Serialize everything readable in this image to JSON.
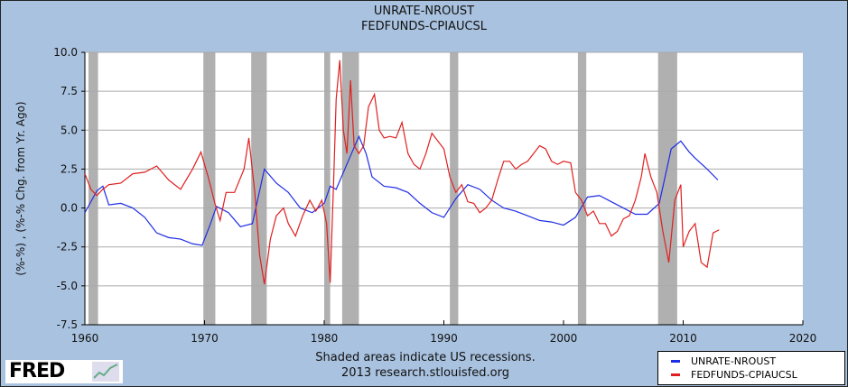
{
  "chart_data": {
    "type": "line",
    "title": [
      "UNRATE-NROUST",
      "FEDFUNDS-CPIAUCSL"
    ],
    "ylabel": "(%-%) , (%-% Chg. from Yr. Ago)",
    "xlabel": "",
    "xlim": [
      1960,
      2020
    ],
    "ylim": [
      -7.5,
      10.0
    ],
    "xticks": [
      "1960",
      "1970",
      "1980",
      "1990",
      "2000",
      "2010",
      "2020"
    ],
    "yticks": [
      "10.0",
      "7.5",
      "5.0",
      "2.5",
      "0.0",
      "-2.5",
      "-5.0",
      "-7.5"
    ],
    "grid": true,
    "legend_position": "bottom-right",
    "recessions": [
      [
        1960.3,
        1961.1
      ],
      [
        1969.9,
        1970.9
      ],
      [
        1973.9,
        1975.2
      ],
      [
        1980.0,
        1980.5
      ],
      [
        1981.5,
        1982.9
      ],
      [
        1990.5,
        1991.2
      ],
      [
        2001.2,
        2001.9
      ],
      [
        2007.9,
        2009.5
      ]
    ],
    "series": [
      {
        "name": "UNRATE-NROUST",
        "color": "#1e2de6",
        "x": [
          1960,
          1961,
          1961.5,
          1962,
          1963,
          1964,
          1965,
          1966,
          1967,
          1968,
          1969,
          1969.8,
          1970.5,
          1971,
          1972,
          1973,
          1974,
          1975,
          1976,
          1977,
          1978,
          1979,
          1980,
          1980.5,
          1981,
          1982,
          1982.9,
          1983.5,
          1984,
          1985,
          1986,
          1987,
          1988,
          1989,
          1990,
          1991,
          1992,
          1993,
          1994,
          1995,
          1996,
          1997,
          1998,
          1999,
          2000,
          2001,
          2002,
          2003,
          2004,
          2005,
          2006,
          2007,
          2008,
          2009,
          2009.8,
          2010.5,
          2011,
          2012,
          2012.9
        ],
        "y": [
          -0.3,
          1.1,
          1.4,
          0.2,
          0.3,
          0.0,
          -0.6,
          -1.6,
          -1.9,
          -2.0,
          -2.3,
          -2.4,
          -1.0,
          0.1,
          -0.3,
          -1.2,
          -1.0,
          2.5,
          1.6,
          1.0,
          0.0,
          -0.3,
          0.3,
          1.4,
          1.2,
          3.0,
          4.6,
          3.5,
          2.0,
          1.4,
          1.3,
          1.0,
          0.3,
          -0.3,
          -0.6,
          0.6,
          1.5,
          1.2,
          0.5,
          0.0,
          -0.2,
          -0.5,
          -0.8,
          -0.9,
          -1.1,
          -0.6,
          0.7,
          0.8,
          0.4,
          0.0,
          -0.4,
          -0.4,
          0.3,
          3.8,
          4.3,
          3.6,
          3.2,
          2.5,
          1.8
        ]
      },
      {
        "name": "FEDFUNDS-CPIAUCSL",
        "color": "#e02020",
        "x": [
          1960,
          1960.5,
          1961,
          1961.5,
          1962,
          1963,
          1964,
          1965,
          1966,
          1967,
          1968,
          1969,
          1969.7,
          1970.3,
          1970.9,
          1971.3,
          1971.8,
          1972.5,
          1973.3,
          1973.7,
          1974.2,
          1974.6,
          1975,
          1975.5,
          1976,
          1976.6,
          1977,
          1977.6,
          1978.2,
          1978.8,
          1979.3,
          1979.8,
          1980.2,
          1980.5,
          1980.8,
          1981,
          1981.3,
          1981.6,
          1981.9,
          1982.2,
          1982.5,
          1982.9,
          1983.3,
          1983.7,
          1984.2,
          1984.6,
          1985,
          1985.5,
          1986,
          1986.5,
          1987,
          1987.5,
          1988,
          1988.5,
          1989,
          1989.5,
          1990,
          1990.5,
          1991,
          1991.5,
          1992,
          1992.5,
          1993,
          1993.5,
          1994,
          1994.5,
          1995,
          1995.5,
          1996,
          1996.5,
          1997,
          1997.5,
          1998,
          1998.5,
          1999,
          1999.5,
          2000,
          2000.6,
          2001,
          2001.5,
          2002,
          2002.5,
          2003,
          2003.5,
          2004,
          2004.5,
          2005,
          2005.5,
          2006,
          2006.5,
          2006.8,
          2007.3,
          2007.8,
          2008.3,
          2008.8,
          2009.3,
          2009.8,
          2010,
          2010.5,
          2011,
          2011.5,
          2012,
          2012.5,
          2013
        ],
        "y": [
          2.2,
          1.2,
          0.8,
          1.2,
          1.5,
          1.6,
          2.2,
          2.3,
          2.7,
          1.8,
          1.2,
          2.5,
          3.6,
          2.0,
          0.2,
          -0.8,
          1.0,
          1.0,
          2.5,
          4.5,
          1.0,
          -3.0,
          -4.9,
          -2.0,
          -0.5,
          0.0,
          -1.0,
          -1.8,
          -0.5,
          0.5,
          -0.2,
          0.5,
          -1.0,
          -4.8,
          2.0,
          7.0,
          9.5,
          5.0,
          3.5,
          8.2,
          4.0,
          3.5,
          4.0,
          6.5,
          7.3,
          5.0,
          4.5,
          4.6,
          4.5,
          5.5,
          3.5,
          2.8,
          2.5,
          3.5,
          4.8,
          4.3,
          3.8,
          2.0,
          1.0,
          1.5,
          0.4,
          0.3,
          -0.3,
          0.0,
          0.5,
          1.8,
          3.0,
          3.0,
          2.5,
          2.8,
          3.0,
          3.5,
          4.0,
          3.8,
          3.0,
          2.8,
          3.0,
          2.9,
          1.0,
          0.5,
          -0.5,
          -0.2,
          -1.0,
          -1.0,
          -1.8,
          -1.5,
          -0.7,
          -0.5,
          0.5,
          2.0,
          3.5,
          2.0,
          1.0,
          -1.5,
          -3.5,
          0.5,
          1.5,
          -2.5,
          -1.5,
          -1.0,
          -3.5,
          -3.8,
          -1.6,
          -1.4
        ]
      }
    ]
  },
  "footer": {
    "note_line1": "Shaded areas indicate US recessions.",
    "note_line2": "2013 research.stlouisfed.org",
    "logo": "FRED"
  }
}
